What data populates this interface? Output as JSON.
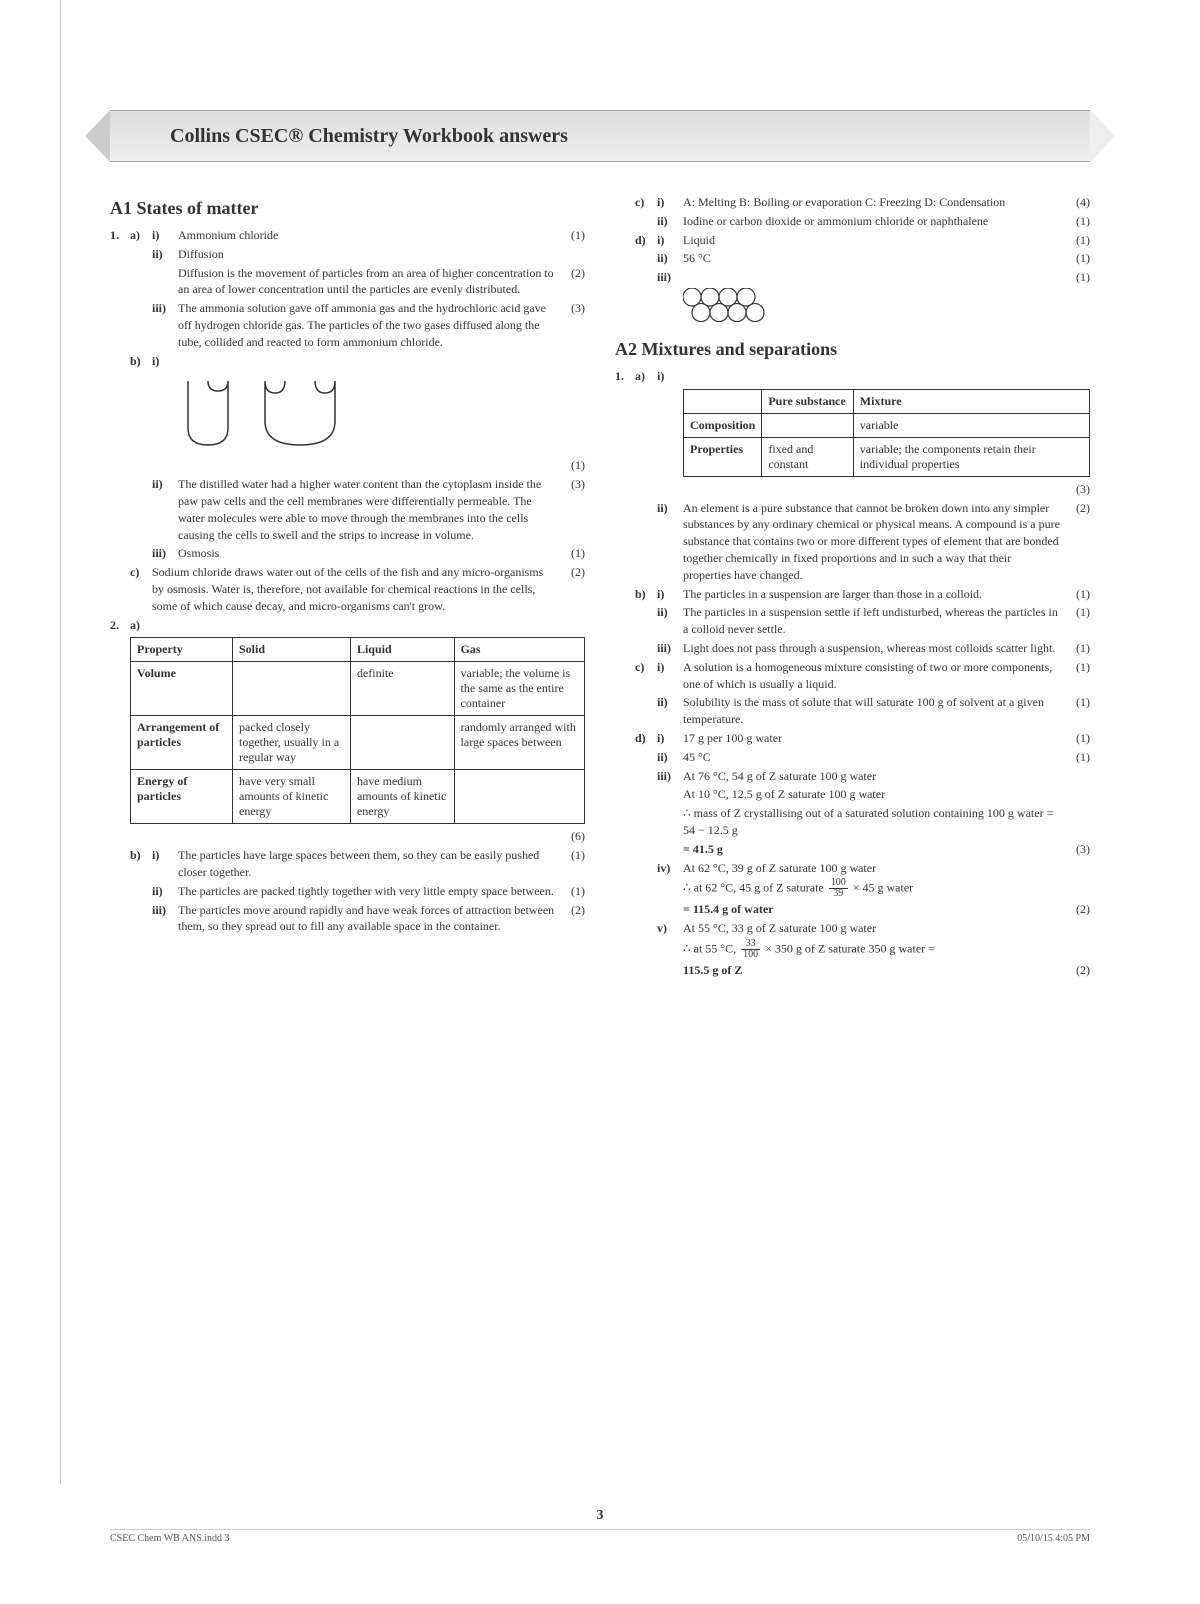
{
  "header": {
    "title": "Collins CSEC® Chemistry Workbook answers"
  },
  "sectionA1": {
    "title": "A1 States of matter",
    "q1": {
      "num": "1.",
      "a": {
        "lab": "a)",
        "i": {
          "lab": "i)",
          "text": "Ammonium chloride",
          "mark": "(1)"
        },
        "ii": {
          "lab": "ii)",
          "text1": "Diffusion",
          "text2": "Diffusion is the movement of particles from an area of higher concentration to an area of lower concentration until the particles are evenly distributed.",
          "mark": "(2)"
        },
        "iii": {
          "lab": "iii)",
          "text": "The ammonia solution gave off ammonia gas and the hydrochloric acid gave off hydrogen chloride gas. The particles of the two gases diffused along the tube, collided and reacted to form ammonium chloride.",
          "mark": "(3)"
        }
      },
      "b": {
        "lab": "b)",
        "i": {
          "lab": "i)",
          "mark": "(1)"
        },
        "ii": {
          "lab": "ii)",
          "text": "The distilled water had a higher water content than the cytoplasm inside the paw paw cells and the cell membranes were differentially permeable. The water molecules were able to move through the membranes into the cells causing the cells to swell and the strips to increase in volume.",
          "mark": "(3)"
        },
        "iii": {
          "lab": "iii)",
          "text": "Osmosis",
          "mark": "(1)"
        }
      },
      "c": {
        "lab": "c)",
        "text": "Sodium chloride draws water out of the cells of the fish and any micro-organisms by osmosis. Water is, therefore, not available for chemical reactions in the cells, some of which cause decay, and micro-organisms can't grow.",
        "mark": "(2)"
      }
    },
    "q2": {
      "num": "2.",
      "a": {
        "lab": "a)",
        "table": {
          "headers": [
            "Property",
            "Solid",
            "Liquid",
            "Gas"
          ],
          "rows": [
            [
              "Volume",
              "",
              "definite",
              "variable; the volume is the same as the entire container"
            ],
            [
              "Arrangement of particles",
              "packed closely together, usually in a regular way",
              "",
              "randomly arranged with large spaces between"
            ],
            [
              "Energy of particles",
              "have very small amounts of kinetic energy",
              "have medium amounts of kinetic energy",
              ""
            ]
          ]
        },
        "mark": "(6)"
      },
      "b": {
        "lab": "b)",
        "i": {
          "lab": "i)",
          "text": "The particles have large spaces between them, so they can be easily pushed closer together.",
          "mark": "(1)"
        },
        "ii": {
          "lab": "ii)",
          "text": "The particles are packed tightly together with very little empty space between.",
          "mark": "(1)"
        },
        "iii": {
          "lab": "iii)",
          "text": "The particles move around rapidly and have weak forces of attraction between them, so they spread out to fill any available space in the container.",
          "mark": "(2)"
        }
      },
      "c": {
        "lab": "c)",
        "i": {
          "lab": "i)",
          "text": "A: Melting    B: Boiling or evaporation C: Freezing   D: Condensation",
          "mark": "(4)"
        },
        "ii": {
          "lab": "ii)",
          "text": "Iodine or carbon dioxide or ammonium chloride or naphthalene",
          "mark": "(1)"
        }
      },
      "d": {
        "lab": "d)",
        "i": {
          "lab": "i)",
          "text": "Liquid",
          "mark": "(1)"
        },
        "ii": {
          "lab": "ii)",
          "text": "56 °C",
          "mark": "(1)"
        },
        "iii": {
          "lab": "iii)",
          "mark": "(1)"
        }
      }
    }
  },
  "sectionA2": {
    "title": "A2 Mixtures and separations",
    "q1": {
      "num": "1.",
      "a": {
        "lab": "a)",
        "i": {
          "lab": "i)",
          "table": {
            "headers": [
              "",
              "Pure substance",
              "Mixture"
            ],
            "rows": [
              [
                "Composition",
                "",
                "variable"
              ],
              [
                "Properties",
                "fixed and constant",
                "variable; the components retain their individual properties"
              ]
            ]
          },
          "mark": "(3)"
        },
        "ii": {
          "lab": "ii)",
          "text": "An element is a pure substance that cannot be broken down into any simpler substances by any ordinary chemical or physical means. A compound is a pure substance that contains two or more different types of element that are bonded together chemically in fixed proportions and in such a way that their properties have changed.",
          "mark": "(2)"
        }
      },
      "b": {
        "lab": "b)",
        "i": {
          "lab": "i)",
          "text": "The particles in a suspension are larger than those in a colloid.",
          "mark": "(1)"
        },
        "ii": {
          "lab": "ii)",
          "text": "The particles in a suspension settle if left undisturbed, whereas the particles in a colloid never settle.",
          "mark": "(1)"
        },
        "iii": {
          "lab": "iii)",
          "text": "Light does not pass through a suspension, whereas most colloids scatter light.",
          "mark": "(1)"
        }
      },
      "c": {
        "lab": "c)",
        "i": {
          "lab": "i)",
          "text": "A solution is a homogeneous mixture consisting of two or more components, one of which is usually a liquid.",
          "mark": "(1)"
        },
        "ii": {
          "lab": "ii)",
          "text": "Solubility is the mass of solute that will saturate 100 g of solvent at a given temperature.",
          "mark": "(1)"
        }
      },
      "d": {
        "lab": "d)",
        "i": {
          "lab": "i)",
          "text": "17 g per 100 g water",
          "mark": "(1)"
        },
        "ii": {
          "lab": "ii)",
          "text": "45 °C",
          "mark": "(1)"
        },
        "iii": {
          "lab": "iii)",
          "line1": "At 76 °C, 54 g of Z saturate 100 g water",
          "line2": "At 10 °C, 12.5 g of Z saturate 100 g water",
          "line3": "∴ mass of Z crystallising out of a saturated solution containing 100 g water = 54 − 12.5 g",
          "line4": "= 41.5 g",
          "mark": "(3)"
        },
        "iv": {
          "lab": "iv)",
          "line1": "At 62 °C, 39 g of Z saturate 100 g water",
          "pre2": "∴ at 62 °C, 45 g of Z saturate ",
          "fracN2": "100",
          "fracD2": "39",
          "post2": " × 45 g water",
          "line3": "= 115.4 g of water",
          "mark": "(2)"
        },
        "v": {
          "lab": "v)",
          "line1": "At 55 °C, 33 g of Z saturate 100 g water",
          "pre2": "∴ at 55 °C, ",
          "fracN2": "33",
          "fracD2": "100",
          "post2": " × 350 g of Z saturate 350 g water =",
          "line3": "115.5 g of Z",
          "mark": "(2)"
        }
      }
    }
  },
  "pageNumber": "3",
  "footer": {
    "left": "CSEC Chem  WB ANS.indd  3",
    "right": "05/10/15  4:05 PM"
  },
  "svg": {
    "pawpaw": {
      "stroke": "#333",
      "fill": "none",
      "strokeWidth": 1.5
    },
    "circles": {
      "stroke": "#333",
      "fill": "none",
      "strokeWidth": 1.2,
      "r": 9,
      "rows": 2,
      "cols": 4
    }
  }
}
